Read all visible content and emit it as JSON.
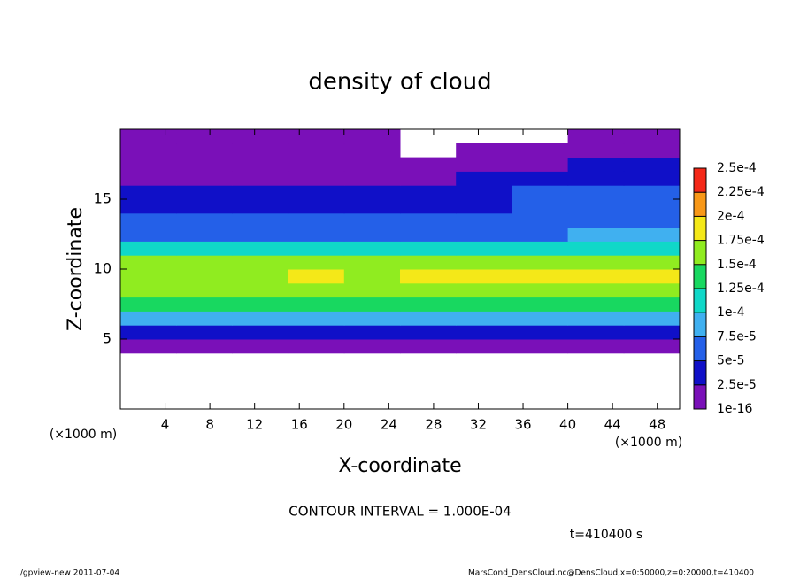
{
  "chart_data": {
    "type": "contour",
    "title": "density of cloud",
    "x_label": "X-coordinate",
    "y_label": "Z-coordinate",
    "x_unit": "(×1000 m)",
    "colorbar_unit": "(×1000 m)",
    "contour_note": "CONTOUR INTERVAL = 1.000E-04",
    "time_note": "t=410400 s",
    "footer_left": "./gpview-new  2011-07-04",
    "footer_right": "MarsCond_DensCloud.nc@DensCloud,x=0:50000,z=0:20000,t=410400",
    "xlim": [
      0,
      50
    ],
    "ylim": [
      0,
      20
    ],
    "xticks": [
      4,
      8,
      12,
      16,
      20,
      24,
      28,
      32,
      36,
      40,
      44,
      48
    ],
    "yticks": [
      5,
      10,
      15
    ],
    "x": [
      2.5,
      7.5,
      12.5,
      17.5,
      22.5,
      27.5,
      32.5,
      37.5,
      42.5,
      47.5
    ],
    "z": [
      0.5,
      1.5,
      2.5,
      3.5,
      4.5,
      5.5,
      6.5,
      7.5,
      8.5,
      9.5,
      10.5,
      11.5,
      12.5,
      13.5,
      14.5,
      15.5,
      16.5,
      17.5,
      18.5,
      19.5
    ],
    "levels": [
      {
        "value": 1e-16,
        "label": "1e-16"
      },
      {
        "value": 2.5e-05,
        "label": "2.5e-5"
      },
      {
        "value": 5e-05,
        "label": "5e-5"
      },
      {
        "value": 7.5e-05,
        "label": "7.5e-5"
      },
      {
        "value": 0.0001,
        "label": "1e-4"
      },
      {
        "value": 0.000125,
        "label": "1.25e-4"
      },
      {
        "value": 0.00015,
        "label": "1.5e-4"
      },
      {
        "value": 0.000175,
        "label": "1.75e-4"
      },
      {
        "value": 0.0002,
        "label": "2e-4"
      },
      {
        "value": 0.000225,
        "label": "2.25e-4"
      },
      {
        "value": 0.00025,
        "label": "2.5e-4"
      }
    ],
    "colors": [
      "#7a10b8",
      "#1010c8",
      "#2460e8",
      "#40b0f0",
      "#10d8c8",
      "#18d860",
      "#90ec20",
      "#f4e818",
      "#f89818",
      "#f42818"
    ],
    "values": [
      [
        null,
        null,
        null,
        null,
        null,
        null,
        null,
        null,
        null,
        null
      ],
      [
        null,
        null,
        null,
        null,
        null,
        null,
        null,
        null,
        null,
        null
      ],
      [
        null,
        null,
        null,
        null,
        null,
        null,
        null,
        null,
        null,
        null
      ],
      [
        null,
        null,
        null,
        null,
        null,
        null,
        null,
        null,
        null,
        null
      ],
      [
        1.5e-05,
        1.8e-05,
        1.5e-05,
        1.6e-05,
        1.4e-05,
        1.7e-05,
        1.5e-05,
        1.6e-05,
        1.5e-05,
        1.4e-05
      ],
      [
        4.2e-05,
        4.5e-05,
        4e-05,
        4.4e-05,
        4.1e-05,
        4.3e-05,
        4.6e-05,
        4.2e-05,
        4.4e-05,
        4e-05
      ],
      [
        8.5e-05,
        8e-05,
        8.8e-05,
        8.2e-05,
        8.6e-05,
        8.4e-05,
        8.1e-05,
        8.7e-05,
        8.3e-05,
        8.5e-05
      ],
      [
        0.00013,
        0.000125,
        0.00013,
        0.000128,
        0.000132,
        0.00013,
        0.000127,
        0.000135,
        0.000133,
        0.00013
      ],
      [
        0.00016,
        0.000155,
        0.00016,
        0.000162,
        0.000158,
        0.000165,
        0.00016,
        0.00017,
        0.000172,
        0.000168
      ],
      [
        0.00017,
        0.000168,
        0.000172,
        0.000176,
        0.00017,
        0.00018,
        0.000176,
        0.000185,
        0.00019,
        0.00018
      ],
      [
        0.000155,
        0.00015,
        0.000155,
        0.000158,
        0.000155,
        0.000162,
        0.00016,
        0.000165,
        0.00017,
        0.00016
      ],
      [
        0.00011,
        0.000105,
        0.00011,
        0.000108,
        0.00011,
        0.000112,
        0.00011,
        0.000115,
        0.00012,
        0.00011
      ],
      [
        6.5e-05,
        6.2e-05,
        6e-05,
        6.3e-05,
        6.1e-05,
        6.4e-05,
        6.6e-05,
        7e-05,
        7.8e-05,
        8e-05
      ],
      [
        5.5e-05,
        5.2e-05,
        5e-05,
        5.4e-05,
        5.3e-05,
        5.5e-05,
        5.8e-05,
        6.2e-05,
        6.8e-05,
        7e-05
      ],
      [
        4.5e-05,
        4.2e-05,
        3.8e-05,
        4e-05,
        4.4e-05,
        4.6e-05,
        4.8e-05,
        5.5e-05,
        6e-05,
        6.2e-05
      ],
      [
        3.5e-05,
        3.2e-05,
        2.8e-05,
        3e-05,
        3.2e-05,
        3e-05,
        3.6e-05,
        5.2e-05,
        5.5e-05,
        5.8e-05
      ],
      [
        2e-05,
        2.2e-05,
        1.8e-05,
        2e-05,
        2.4e-05,
        2.2e-05,
        2.6e-05,
        3.5e-05,
        4.2e-05,
        4.5e-05
      ],
      [
        1.5e-05,
        1.6e-05,
        1.4e-05,
        1.5e-05,
        1.8e-05,
        2e-05,
        1.6e-05,
        1.8e-05,
        2.6e-05,
        3e-05
      ],
      [
        1e-05,
        1.2e-05,
        1e-05,
        1.1e-05,
        1.3e-05,
        null,
        1e-05,
        1.2e-05,
        1.5e-05,
        1.8e-05
      ],
      [
        1e-05,
        1e-05,
        1e-05,
        1e-05,
        1e-05,
        null,
        null,
        null,
        1e-05,
        1e-05
      ]
    ]
  }
}
